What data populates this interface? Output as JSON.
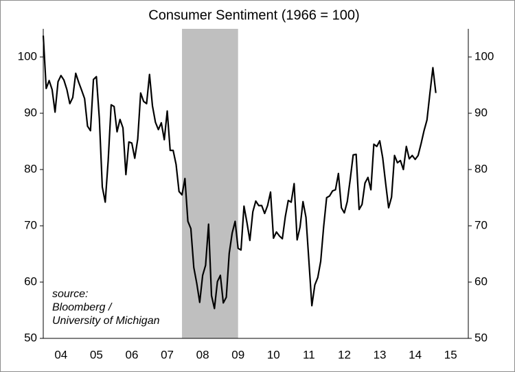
{
  "chart_data": {
    "type": "line",
    "title": "Consumer Sentiment (1966 = 100)",
    "annotation": [
      "source:",
      "Bloomberg /",
      "University of Michigan"
    ],
    "shaded_span": [
      2007.917,
      2009.5
    ],
    "x": [
      2004.0,
      2004.083,
      2004.167,
      2004.25,
      2004.333,
      2004.417,
      2004.5,
      2004.583,
      2004.667,
      2004.75,
      2004.833,
      2004.917,
      2005.0,
      2005.083,
      2005.167,
      2005.25,
      2005.333,
      2005.417,
      2005.5,
      2005.583,
      2005.667,
      2005.75,
      2005.833,
      2005.917,
      2006.0,
      2006.083,
      2006.167,
      2006.25,
      2006.333,
      2006.417,
      2006.5,
      2006.583,
      2006.667,
      2006.75,
      2006.833,
      2006.917,
      2007.0,
      2007.083,
      2007.167,
      2007.25,
      2007.333,
      2007.417,
      2007.5,
      2007.583,
      2007.667,
      2007.75,
      2007.833,
      2007.917,
      2008.0,
      2008.083,
      2008.167,
      2008.25,
      2008.333,
      2008.417,
      2008.5,
      2008.583,
      2008.667,
      2008.75,
      2008.833,
      2008.917,
      2009.0,
      2009.083,
      2009.167,
      2009.25,
      2009.333,
      2009.417,
      2009.5,
      2009.583,
      2009.667,
      2009.75,
      2009.833,
      2009.917,
      2010.0,
      2010.083,
      2010.167,
      2010.25,
      2010.333,
      2010.417,
      2010.5,
      2010.583,
      2010.667,
      2010.75,
      2010.833,
      2010.917,
      2011.0,
      2011.083,
      2011.167,
      2011.25,
      2011.333,
      2011.417,
      2011.5,
      2011.583,
      2011.667,
      2011.75,
      2011.833,
      2011.917,
      2012.0,
      2012.083,
      2012.167,
      2012.25,
      2012.333,
      2012.417,
      2012.5,
      2012.583,
      2012.667,
      2012.75,
      2012.833,
      2012.917,
      2013.0,
      2013.083,
      2013.167,
      2013.25,
      2013.333,
      2013.417,
      2013.5,
      2013.583,
      2013.667,
      2013.75,
      2013.833,
      2013.917,
      2014.0,
      2014.083,
      2014.167,
      2014.25,
      2014.333,
      2014.417,
      2014.5,
      2014.583,
      2014.667,
      2014.75,
      2014.833,
      2014.917,
      2015.0,
      2015.083
    ],
    "values": [
      103.8,
      94.4,
      95.8,
      94.2,
      90.2,
      95.6,
      96.7,
      95.9,
      94.2,
      91.7,
      92.8,
      97.1,
      95.5,
      94.1,
      92.6,
      87.7,
      86.9,
      96.0,
      96.5,
      89.1,
      76.9,
      74.2,
      81.6,
      91.5,
      91.2,
      86.7,
      88.9,
      87.4,
      79.1,
      84.9,
      84.7,
      82.0,
      85.4,
      93.6,
      92.1,
      91.7,
      96.9,
      91.3,
      88.4,
      87.1,
      88.3,
      85.3,
      90.4,
      83.4,
      83.4,
      80.9,
      76.1,
      75.5,
      78.4,
      70.8,
      69.5,
      62.6,
      59.8,
      56.4,
      61.2,
      63.0,
      70.3,
      57.6,
      55.3,
      60.1,
      61.2,
      56.3,
      57.3,
      65.1,
      68.7,
      70.8,
      66.0,
      65.7,
      73.5,
      70.6,
      67.4,
      72.5,
      74.4,
      73.6,
      73.6,
      72.2,
      73.6,
      76.0,
      67.8,
      68.9,
      68.2,
      67.7,
      71.6,
      74.5,
      74.2,
      77.5,
      67.5,
      69.8,
      74.3,
      71.5,
      63.7,
      55.8,
      59.5,
      60.8,
      63.7,
      69.9,
      75.0,
      75.3,
      76.2,
      76.4,
      79.3,
      73.2,
      72.3,
      74.3,
      78.3,
      82.6,
      82.7,
      72.9,
      73.8,
      77.6,
      78.6,
      76.4,
      84.5,
      84.1,
      85.1,
      82.1,
      77.5,
      73.2,
      75.1,
      82.5,
      81.2,
      81.6,
      80.0,
      84.1,
      81.9,
      82.5,
      81.8,
      82.5,
      84.6,
      86.9,
      88.8,
      93.6,
      98.1,
      93.6
    ],
    "color": "#000000",
    "shade_color": "#bfbfbf",
    "xlim": [
      2004,
      2016
    ],
    "xticks": [
      {
        "value": 2004.5,
        "label": "04"
      },
      {
        "value": 2005.5,
        "label": "05"
      },
      {
        "value": 2006.5,
        "label": "06"
      },
      {
        "value": 2007.5,
        "label": "07"
      },
      {
        "value": 2008.5,
        "label": "08"
      },
      {
        "value": 2009.5,
        "label": "09"
      },
      {
        "value": 2010.5,
        "label": "10"
      },
      {
        "value": 2011.5,
        "label": "11"
      },
      {
        "value": 2012.5,
        "label": "12"
      },
      {
        "value": 2013.5,
        "label": "13"
      },
      {
        "value": 2014.5,
        "label": "14"
      },
      {
        "value": 2015.5,
        "label": "15"
      }
    ],
    "ylim": [
      50,
      105
    ],
    "yticks": [
      50,
      60,
      70,
      80,
      90,
      100
    ],
    "mirror_y": true,
    "grid": false
  }
}
